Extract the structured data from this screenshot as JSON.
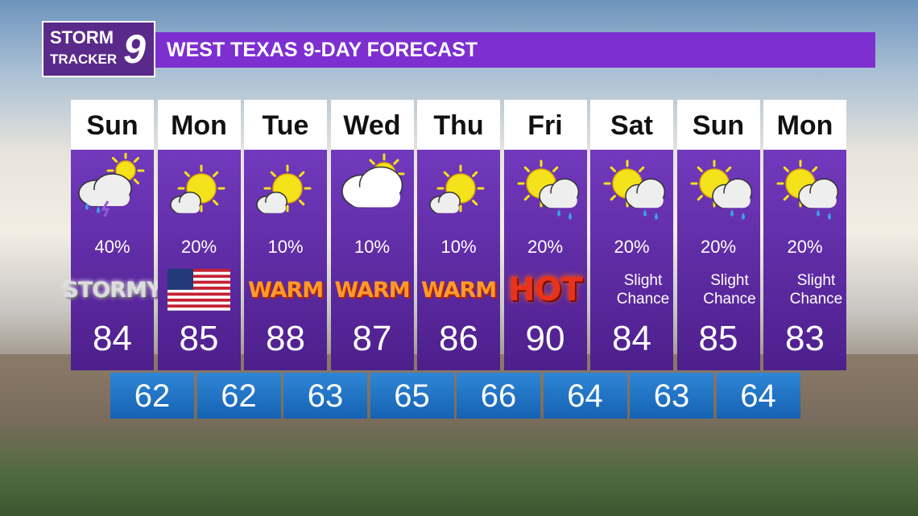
{
  "logo": {
    "line1": "STORM",
    "line2": "TRACKER",
    "number": "9"
  },
  "header": {
    "title": "WEST TEXAS 9-DAY FORECAST"
  },
  "days": [
    {
      "name": "Sun",
      "precip": "40%",
      "badge": "STORMY",
      "high": 84
    },
    {
      "name": "Mon",
      "precip": "20%",
      "high": 85
    },
    {
      "name": "Tue",
      "precip": "10%",
      "badge": "WARM",
      "high": 88
    },
    {
      "name": "Wed",
      "precip": "10%",
      "badge": "WARM",
      "high": 87
    },
    {
      "name": "Thu",
      "precip": "10%",
      "badge": "WARM",
      "high": 86
    },
    {
      "name": "Fri",
      "precip": "20%",
      "badge": "HOT",
      "high": 90
    },
    {
      "name": "Sat",
      "precip": "20%",
      "badge": "Slight Chance",
      "high": 84
    },
    {
      "name": "Sun",
      "precip": "20%",
      "badge": "Slight Chance",
      "high": 85
    },
    {
      "name": "Mon",
      "precip": "20%",
      "badge": "Slight Chance",
      "high": 83
    }
  ],
  "lows": [
    62,
    62,
    63,
    65,
    66,
    64,
    63,
    64
  ]
}
